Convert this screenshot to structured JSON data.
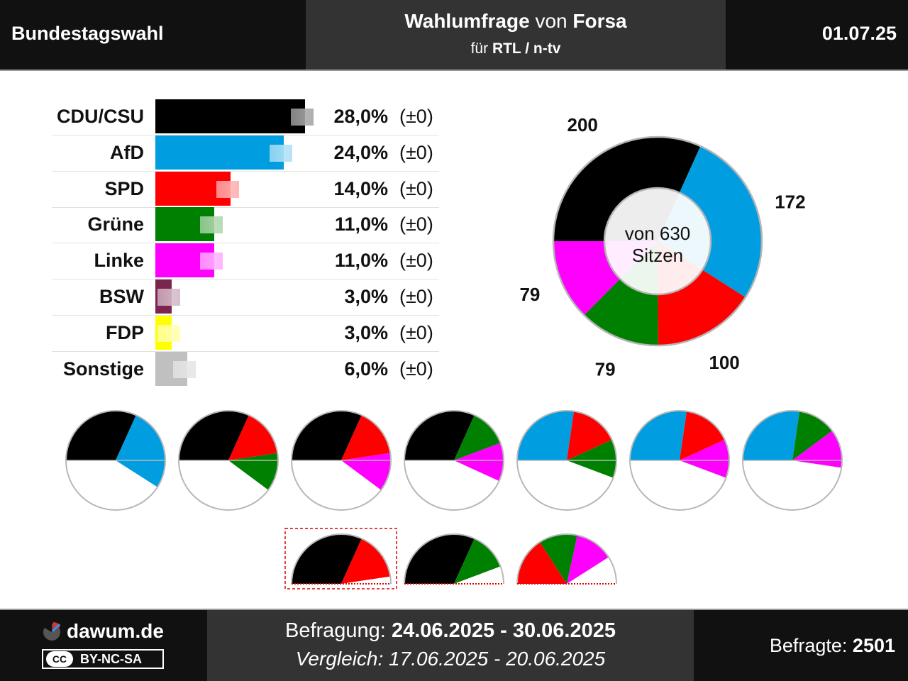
{
  "header": {
    "left": "Bundestagswahl",
    "title_bold1": "Wahlumfrage",
    "title_mid": " von ",
    "title_bold2": "Forsa",
    "sub_pre": "für ",
    "sub_bold": "RTL / n-tv",
    "date": "01.07.25"
  },
  "chart_data": [
    {
      "type": "bar",
      "categories": [
        "CDU/CSU",
        "AfD",
        "SPD",
        "Grüne",
        "Linke",
        "BSW",
        "FDP",
        "Sonstige"
      ],
      "values": [
        28.0,
        24.0,
        14.0,
        11.0,
        11.0,
        3.0,
        3.0,
        6.0
      ],
      "previous_values": [
        28.0,
        24.0,
        14.0,
        11.0,
        11.0,
        3.0,
        3.0,
        6.0
      ],
      "value_labels": [
        "28,0%",
        "24,0%",
        "14,0%",
        "11,0%",
        "11,0%",
        "3,0%",
        "3,0%",
        "6,0%"
      ],
      "change_labels": [
        "(±0)",
        "(±0)",
        "(±0)",
        "(±0)",
        "(±0)",
        "(±0)",
        "(±0)",
        "(±0)"
      ],
      "colors": [
        "#000000",
        "#009ee0",
        "#ff0000",
        "#008000",
        "#ff00ff",
        "#7b2450",
        "#ffff00",
        "#c0c0c0"
      ],
      "prev_colors": [
        "#aaaaaa",
        "#b3e2f6",
        "#ffb3b3",
        "#b3d9b3",
        "#ffb3ff",
        "#d7bcca",
        "#ffffb3",
        "#e6e6e6"
      ]
    },
    {
      "type": "pie",
      "title": "von 630 Sitzen",
      "center_line1": "von 630",
      "center_line2": "Sitzen",
      "total_seats": 630,
      "categories": [
        "CDU/CSU",
        "AfD",
        "SPD",
        "Grüne",
        "Linke"
      ],
      "values": [
        200,
        172,
        100,
        79,
        79
      ],
      "labels": [
        "200",
        "172",
        "100",
        "79",
        "79"
      ],
      "colors": [
        "#000000",
        "#009ee0",
        "#ff0000",
        "#008000",
        "#ff00ff"
      ]
    },
    {
      "type": "pie",
      "description": "coalition half-pies (seat shares out of 630)",
      "coalitions": [
        {
          "parties": [
            "CDU/CSU",
            "AfD"
          ],
          "seats": [
            200,
            172
          ],
          "colors": [
            "#000000",
            "#009ee0"
          ],
          "majority": true
        },
        {
          "parties": [
            "CDU/CSU",
            "SPD",
            "Grüne"
          ],
          "seats": [
            200,
            100,
            79
          ],
          "colors": [
            "#000000",
            "#ff0000",
            "#008000"
          ],
          "majority": true
        },
        {
          "parties": [
            "CDU/CSU",
            "SPD",
            "Linke"
          ],
          "seats": [
            200,
            100,
            79
          ],
          "colors": [
            "#000000",
            "#ff0000",
            "#ff00ff"
          ],
          "majority": true
        },
        {
          "parties": [
            "CDU/CSU",
            "Grüne",
            "Linke"
          ],
          "seats": [
            200,
            79,
            79
          ],
          "colors": [
            "#000000",
            "#008000",
            "#ff00ff"
          ],
          "majority": true
        },
        {
          "parties": [
            "AfD",
            "SPD",
            "Grüne"
          ],
          "seats": [
            172,
            100,
            79
          ],
          "colors": [
            "#009ee0",
            "#ff0000",
            "#008000"
          ],
          "majority": true
        },
        {
          "parties": [
            "AfD",
            "SPD",
            "Linke"
          ],
          "seats": [
            172,
            100,
            79
          ],
          "colors": [
            "#009ee0",
            "#ff0000",
            "#ff00ff"
          ],
          "majority": true
        },
        {
          "parties": [
            "AfD",
            "Grüne",
            "Linke"
          ],
          "seats": [
            172,
            79,
            79
          ],
          "colors": [
            "#009ee0",
            "#008000",
            "#ff00ff"
          ],
          "majority": true
        },
        {
          "parties": [
            "CDU/CSU",
            "SPD"
          ],
          "seats": [
            200,
            100
          ],
          "colors": [
            "#000000",
            "#ff0000"
          ],
          "majority": false,
          "highlight": true
        },
        {
          "parties": [
            "CDU/CSU",
            "Grüne"
          ],
          "seats": [
            200,
            79
          ],
          "colors": [
            "#000000",
            "#008000"
          ],
          "majority": false
        },
        {
          "parties": [
            "SPD",
            "Grüne",
            "Linke"
          ],
          "seats": [
            100,
            79,
            79
          ],
          "colors": [
            "#ff0000",
            "#008000",
            "#ff00ff"
          ],
          "majority": false
        }
      ]
    }
  ],
  "footer": {
    "brand": "dawum.de",
    "license_cc": "CC",
    "license": "BY-NC-SA",
    "survey_pre": "Befragung: ",
    "survey_period": "24.06.2025 - 30.06.2025",
    "compare": "Vergleich: 17.06.2025 - 20.06.2025",
    "respondents_label": "Befragte: ",
    "respondents": "2501"
  }
}
